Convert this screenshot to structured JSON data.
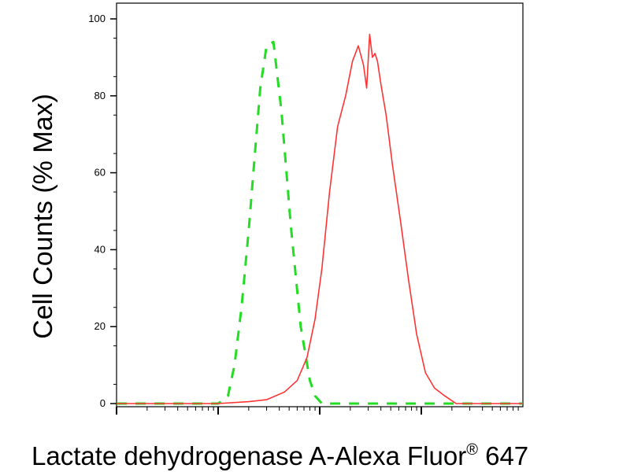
{
  "chart_data": {
    "type": "line",
    "xlabel": "Lactate dehydrogenase A-Alexa Fluor",
    "xlabel_superscript": "®",
    "xlabel_suffix": " 647",
    "ylabel": "Cell Counts (% Max)",
    "xscale": "log",
    "xlim": [
      0.1,
      1000
    ],
    "ylim": [
      0,
      100
    ],
    "yticks": [
      0,
      20,
      40,
      60,
      80,
      100
    ],
    "ytick_labels": [
      "0",
      "20",
      "40",
      "60",
      "80",
      "100"
    ],
    "grid": false,
    "series": [
      {
        "color": "#22dd22",
        "dash": "dashed",
        "x": [
          0.1,
          1.0,
          1.25,
          1.45,
          1.7,
          2.0,
          2.3,
          2.6,
          3.0,
          3.5,
          4.2,
          5.2,
          6.5,
          8.0,
          9.0,
          10.5,
          15,
          30,
          100,
          300,
          1000
        ],
        "y": [
          0,
          0,
          2,
          10,
          25,
          45,
          65,
          82,
          93,
          94,
          76,
          46,
          20,
          6,
          2,
          0,
          0,
          0,
          0,
          0,
          0
        ]
      },
      {
        "color": "#ff3333",
        "dash": "solid",
        "x": [
          0.1,
          1.0,
          2.0,
          3.0,
          4.5,
          6.0,
          7.5,
          9.0,
          10.5,
          12.5,
          15,
          18,
          21,
          24,
          27,
          29,
          31,
          33,
          35,
          37,
          40,
          45,
          52,
          62,
          75,
          90,
          110,
          135,
          170,
          220,
          300,
          1000
        ],
        "y": [
          0,
          0,
          0.5,
          1,
          3,
          6,
          12,
          22,
          35,
          55,
          72,
          80,
          89,
          93,
          88,
          82,
          96,
          90,
          91,
          89,
          83,
          75,
          62,
          48,
          32,
          18,
          8,
          4,
          2,
          0,
          0,
          0
        ]
      }
    ]
  }
}
